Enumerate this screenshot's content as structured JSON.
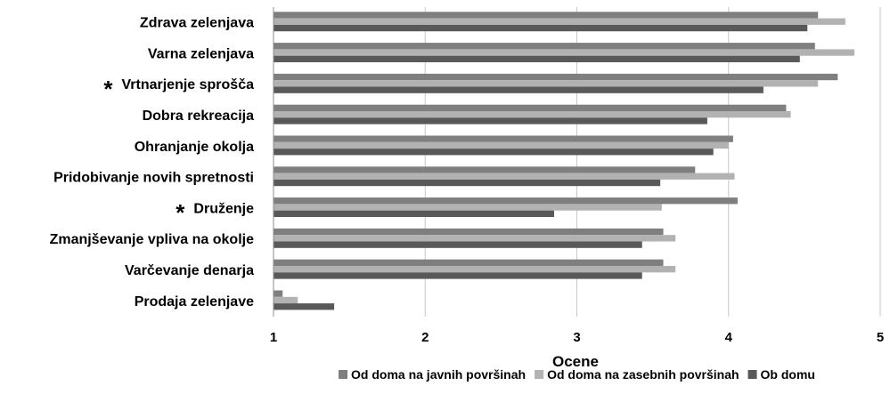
{
  "chart_data": {
    "type": "bar",
    "orientation": "horizontal",
    "xlabel": "Ocene",
    "xlim": [
      1,
      5
    ],
    "xticks": [
      "1",
      "2",
      "3",
      "4",
      "5"
    ],
    "grid": true,
    "legend_position": "bottom",
    "categories": [
      {
        "label": "Zdrava zelenjava",
        "marker": ""
      },
      {
        "label": "Varna zelenjava",
        "marker": ""
      },
      {
        "label": "Vrtnarjenje sprošča",
        "marker": "*"
      },
      {
        "label": "Dobra rekreacija",
        "marker": ""
      },
      {
        "label": "Ohranjanje okolja",
        "marker": ""
      },
      {
        "label": "Pridobivanje novih spretnosti",
        "marker": ""
      },
      {
        "label": "Druženje",
        "marker": "*"
      },
      {
        "label": "Zmanjševanje vpliva na okolje",
        "marker": ""
      },
      {
        "label": "Varčevanje denarja",
        "marker": ""
      },
      {
        "label": "Prodaja zelenjave",
        "marker": ""
      }
    ],
    "series": [
      {
        "name": "Od doma na javnih površinah",
        "color": "#7f7f7f",
        "values": [
          4.59,
          4.57,
          4.72,
          4.38,
          4.03,
          3.78,
          4.06,
          3.57,
          3.57,
          1.06
        ]
      },
      {
        "name": "Od doma na zasebnih površinah",
        "color": "#b2b2b2",
        "values": [
          4.77,
          4.83,
          4.59,
          4.41,
          4.0,
          4.04,
          3.56,
          3.65,
          3.65,
          1.16
        ]
      },
      {
        "name": "Ob domu",
        "color": "#595959",
        "values": [
          4.52,
          4.47,
          4.23,
          3.86,
          3.9,
          3.55,
          2.85,
          3.43,
          3.43,
          1.4
        ]
      }
    ]
  }
}
